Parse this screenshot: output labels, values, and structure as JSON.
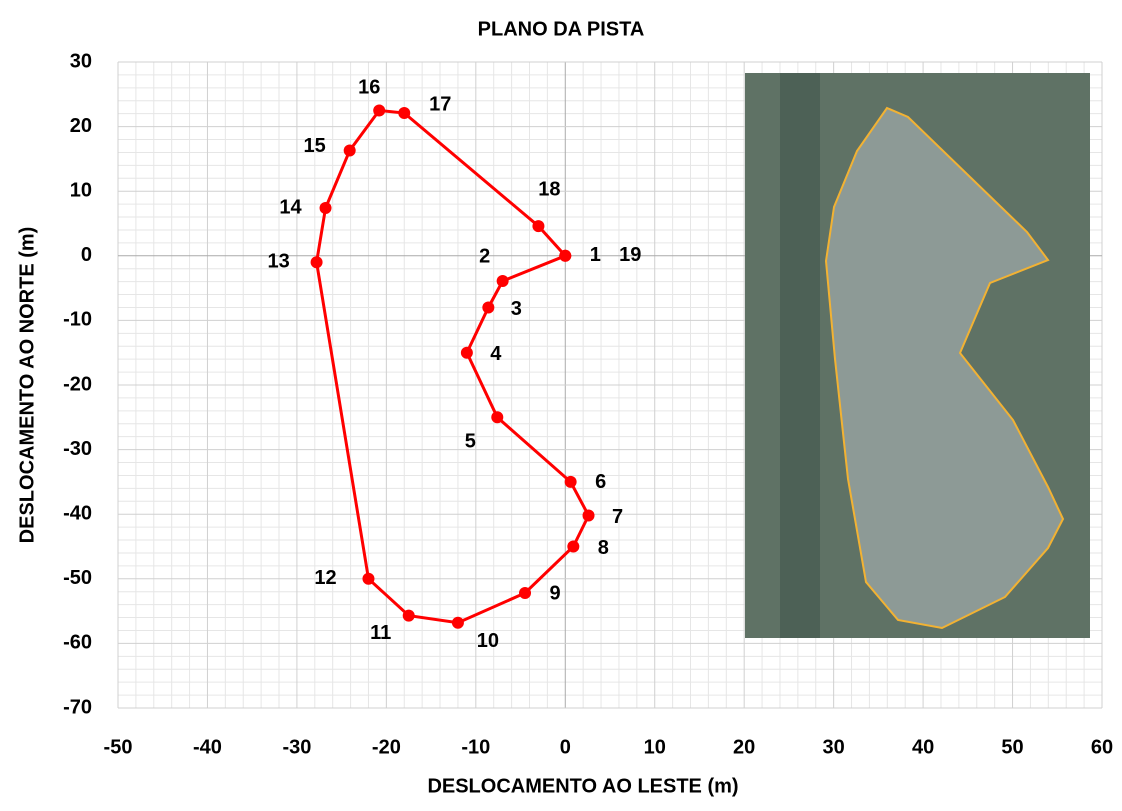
{
  "chart_data": {
    "type": "line",
    "title": "PLANO DA PISTA",
    "x_label": "DESLOCAMENTO AO LESTE (m)",
    "y_label": "DESLOCAMENTO AO NORTE (m)",
    "x": [
      0,
      -7,
      -8.6,
      -11,
      -7.6,
      0.6,
      2.6,
      0.9,
      -4.5,
      -12,
      -17.5,
      -22,
      -27.8,
      -26.8,
      -24.1,
      -20.8,
      -18,
      -3,
      0
    ],
    "y": [
      0,
      -3.9,
      -8,
      -15,
      -25,
      -35,
      -40.2,
      -45,
      -52.2,
      -56.8,
      -55.7,
      -50,
      -1,
      7.4,
      16.3,
      22.5,
      22.1,
      4.6,
      0
    ],
    "point_labels": [
      "1",
      "2",
      "3",
      "4",
      "5",
      "6",
      "7",
      "8",
      "9",
      "10",
      "11",
      "12",
      "13",
      "14",
      "15",
      "16",
      "17",
      "18",
      "19"
    ],
    "color": "#ff0000",
    "xlim": [
      -50,
      60
    ],
    "xticks": [
      -50,
      -40,
      -30,
      -20,
      -10,
      0,
      10,
      20,
      30,
      40,
      50,
      60
    ],
    "ylim": [
      -70,
      30
    ],
    "yticks": [
      -70,
      -60,
      -50,
      -40,
      -30,
      -20,
      -10,
      0,
      10,
      20,
      30
    ],
    "grid": true
  }
}
